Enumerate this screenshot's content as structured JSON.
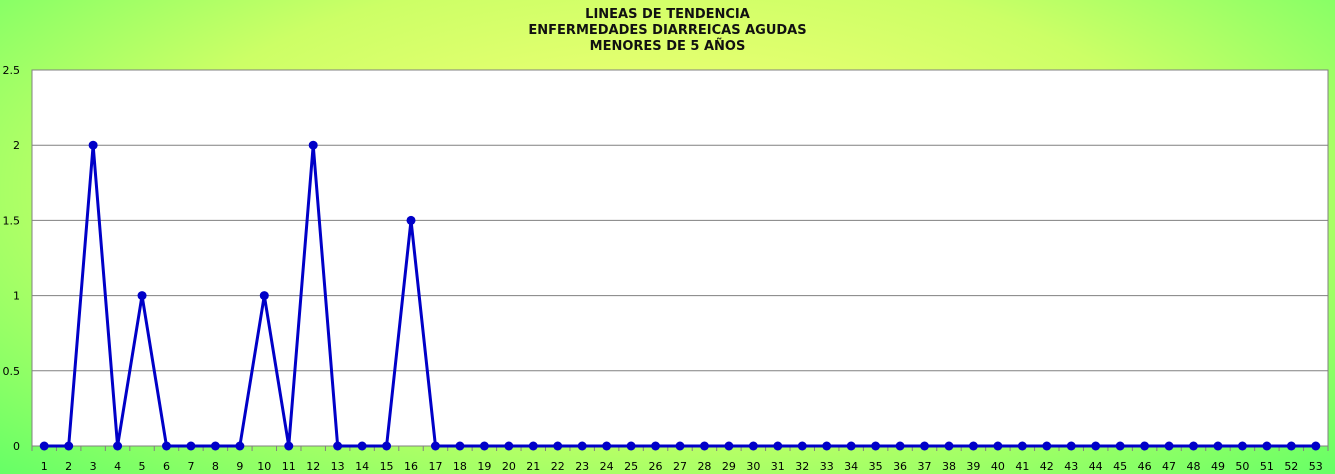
{
  "chart_data": {
    "type": "line",
    "title_lines": [
      "LINEAS DE TENDENCIA",
      "ENFERMEDADES DIARREICAS AGUDAS",
      "MENORES DE 5 AÑOS"
    ],
    "xlabel": "",
    "ylabel": "",
    "categories": [
      "1",
      "2",
      "3",
      "4",
      "5",
      "6",
      "7",
      "8",
      "9",
      "10",
      "11",
      "12",
      "13",
      "14",
      "15",
      "16",
      "17",
      "18",
      "19",
      "20",
      "21",
      "22",
      "23",
      "24",
      "25",
      "26",
      "27",
      "28",
      "29",
      "30",
      "31",
      "32",
      "33",
      "34",
      "35",
      "36",
      "37",
      "38",
      "39",
      "40",
      "41",
      "42",
      "43",
      "44",
      "45",
      "46",
      "47",
      "48",
      "49",
      "50",
      "51",
      "52",
      "53"
    ],
    "series": [
      {
        "values": [
          0,
          0,
          2,
          0,
          1,
          0,
          0,
          0,
          0,
          1,
          0,
          2,
          0,
          0,
          0,
          1.5,
          0,
          0,
          0,
          0,
          0,
          0,
          0,
          0,
          0,
          0,
          0,
          0,
          0,
          0,
          0,
          0,
          0,
          0,
          0,
          0,
          0,
          0,
          0,
          0,
          0,
          0,
          0,
          0,
          0,
          0,
          0,
          0,
          0,
          0,
          0,
          0,
          0
        ],
        "color": "#0000c8"
      }
    ],
    "ylim": [
      0,
      2.5
    ],
    "yticks": [
      "0",
      "0.5",
      "1",
      "1.5",
      "2",
      "2.5"
    ],
    "grid": true,
    "legend": "none"
  }
}
